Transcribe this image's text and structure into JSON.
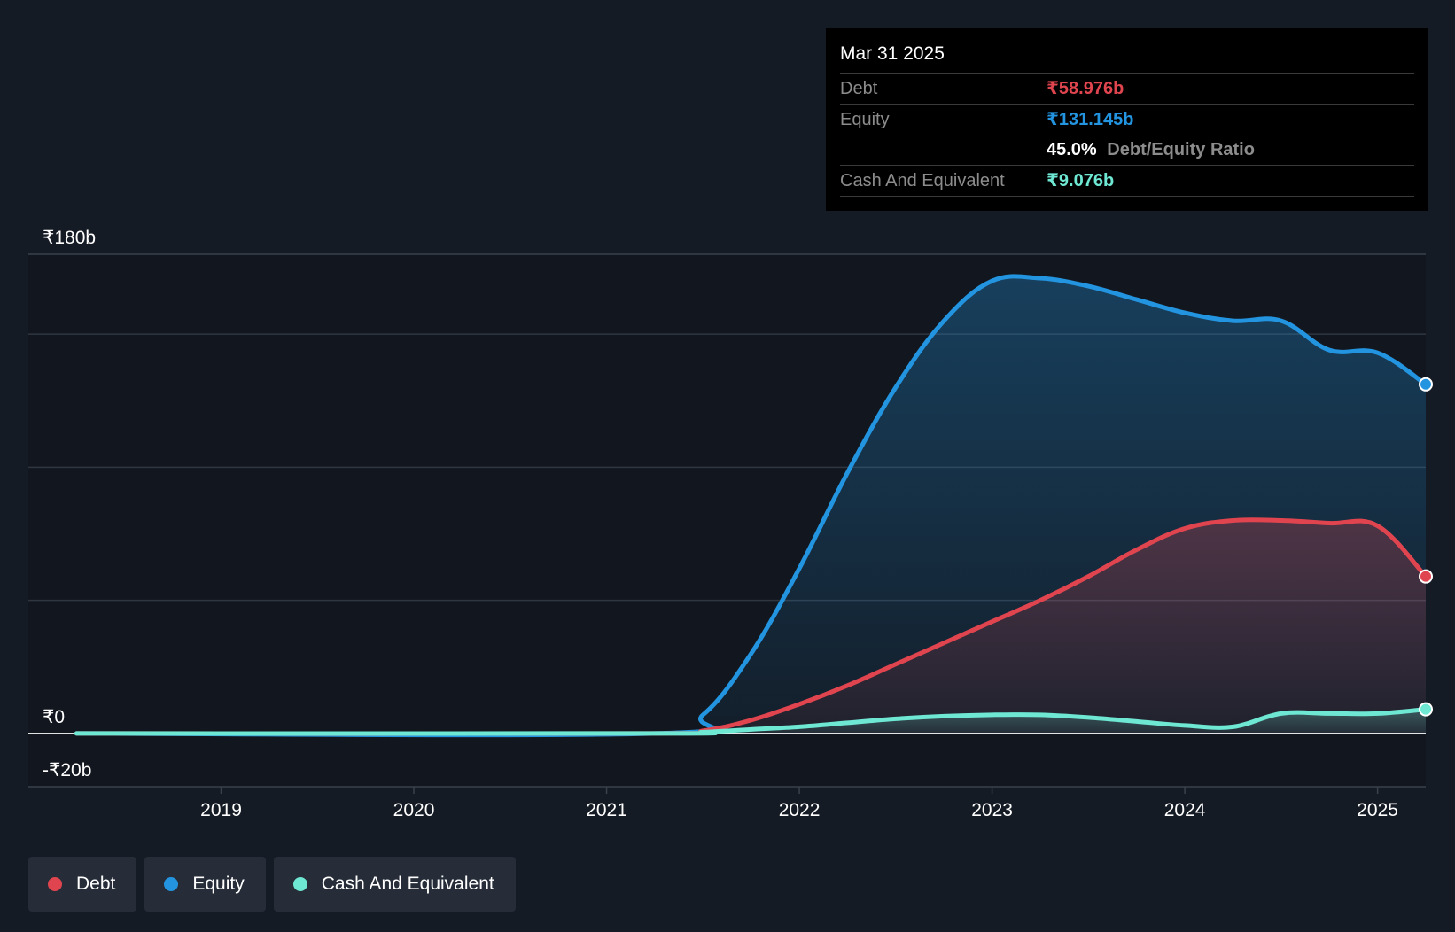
{
  "colors": {
    "background": "#151b24",
    "debt": "#e0454f",
    "equity": "#2394df",
    "cash": "#6ee7d3",
    "grid": "#2f3640",
    "text": "#ffffff"
  },
  "tooltip": {
    "date": "Mar 31 2025",
    "debt_label": "Debt",
    "debt_value": "₹58.976b",
    "equity_label": "Equity",
    "equity_value": "₹131.145b",
    "ratio_value": "45.0%",
    "ratio_label": "Debt/Equity Ratio",
    "cash_label": "Cash And Equivalent",
    "cash_value": "₹9.076b"
  },
  "legend": [
    {
      "label": "Debt",
      "color": "#e0454f"
    },
    {
      "label": "Equity",
      "color": "#2394df"
    },
    {
      "label": "Cash And Equivalent",
      "color": "#6ee7d3"
    }
  ],
  "chart_data": {
    "type": "area",
    "title": "",
    "xlabel": "",
    "ylabel": "",
    "y_tick_labels": [
      {
        "value": 180,
        "label": "₹180b"
      },
      {
        "value": 0,
        "label": "₹0"
      },
      {
        "value": -20,
        "label": "-₹20b"
      }
    ],
    "ylim": [
      -20,
      180
    ],
    "gridlines": [
      150,
      100,
      50
    ],
    "x_ticks": [
      {
        "x": 2019,
        "label": "2019"
      },
      {
        "x": 2020,
        "label": "2020"
      },
      {
        "x": 2021,
        "label": "2021"
      },
      {
        "x": 2022,
        "label": "2022"
      },
      {
        "x": 2023,
        "label": "2023"
      },
      {
        "x": 2024,
        "label": "2024"
      },
      {
        "x": 2025,
        "label": "2025"
      }
    ],
    "xlim": [
      2018.0,
      2025.25
    ],
    "series": [
      {
        "name": "Equity",
        "color": "#2394df",
        "points": [
          [
            2018.25,
            0
          ],
          [
            2021.25,
            0
          ],
          [
            2021.5,
            7
          ],
          [
            2021.75,
            30
          ],
          [
            2022.0,
            62
          ],
          [
            2022.25,
            98
          ],
          [
            2022.5,
            130
          ],
          [
            2022.75,
            155
          ],
          [
            2023.0,
            170
          ],
          [
            2023.25,
            171
          ],
          [
            2023.5,
            168
          ],
          [
            2023.75,
            163
          ],
          [
            2024.0,
            158
          ],
          [
            2024.25,
            155
          ],
          [
            2024.5,
            155
          ],
          [
            2024.75,
            144
          ],
          [
            2025.0,
            143
          ],
          [
            2025.25,
            131.145
          ]
        ]
      },
      {
        "name": "Debt",
        "color": "#e0454f",
        "points": [
          [
            2018.25,
            0
          ],
          [
            2021.25,
            0
          ],
          [
            2021.5,
            1
          ],
          [
            2021.75,
            5
          ],
          [
            2022.0,
            11
          ],
          [
            2022.25,
            18
          ],
          [
            2022.5,
            26
          ],
          [
            2022.75,
            34
          ],
          [
            2023.0,
            42
          ],
          [
            2023.25,
            50
          ],
          [
            2023.5,
            59
          ],
          [
            2023.75,
            69
          ],
          [
            2024.0,
            77
          ],
          [
            2024.25,
            80
          ],
          [
            2024.5,
            80
          ],
          [
            2024.75,
            79
          ],
          [
            2025.0,
            78
          ],
          [
            2025.25,
            58.976
          ]
        ]
      },
      {
        "name": "Cash And Equivalent",
        "color": "#6ee7d3",
        "points": [
          [
            2018.25,
            0
          ],
          [
            2021.25,
            0
          ],
          [
            2021.5,
            0.5
          ],
          [
            2021.75,
            1.5
          ],
          [
            2022.0,
            2.5
          ],
          [
            2022.25,
            4
          ],
          [
            2022.5,
            5.5
          ],
          [
            2022.75,
            6.5
          ],
          [
            2023.0,
            7
          ],
          [
            2023.25,
            7
          ],
          [
            2023.5,
            6
          ],
          [
            2023.75,
            4.5
          ],
          [
            2024.0,
            3
          ],
          [
            2024.25,
            2.5
          ],
          [
            2024.5,
            7.5
          ],
          [
            2024.75,
            7.5
          ],
          [
            2025.0,
            7.5
          ],
          [
            2025.25,
            9.076
          ]
        ]
      }
    ],
    "legend_position": "bottom-left"
  }
}
